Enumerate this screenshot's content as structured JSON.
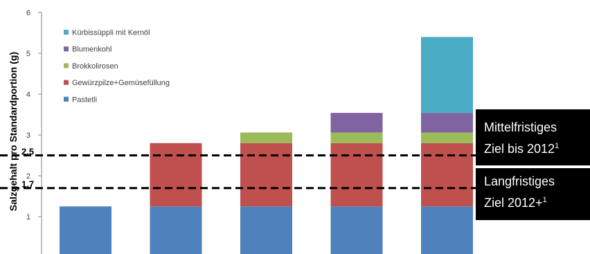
{
  "chart_data": {
    "type": "bar",
    "stacked": true,
    "ylabel": "Salzgehalt pro Standardportion (g)",
    "ylim": [
      0,
      6
    ],
    "y_ticks": [
      1,
      2,
      3,
      4,
      5,
      6
    ],
    "categories": [
      "",
      "",
      "",
      "",
      ""
    ],
    "series": [
      {
        "name": "Pastetli",
        "color": "#4f81bd",
        "values": [
          1.25,
          1.25,
          1.25,
          1.25,
          1.25
        ]
      },
      {
        "name": "Gewürzpilze+Gemüsefüllung",
        "color": "#c0504d",
        "values": [
          0,
          1.55,
          1.55,
          1.55,
          1.55
        ]
      },
      {
        "name": "Brokkolirosen",
        "color": "#9bbb59",
        "values": [
          0,
          0,
          0.26,
          0.26,
          0.26
        ]
      },
      {
        "name": "Blumenkohl",
        "color": "#8064a2",
        "values": [
          0,
          0,
          0,
          0.48,
          0.48
        ]
      },
      {
        "name": "Kürbissüppli mit Kernöl",
        "color": "#4bacc6",
        "values": [
          0,
          0,
          0,
          0,
          1.86
        ]
      }
    ],
    "legend_position": "top-left",
    "reference_lines": [
      {
        "value": 2.5,
        "label": "2.5",
        "style": "dashed"
      },
      {
        "value": 1.7,
        "label": "1.7",
        "style": "dashed"
      }
    ]
  },
  "annotations": {
    "mid_term": {
      "line1": "Mittelfristiges",
      "line2": "Ziel bis 2012",
      "sup": "1"
    },
    "long_term": {
      "line1": "Langfristiges",
      "line2": "Ziel 2012+",
      "sup": "1"
    }
  }
}
